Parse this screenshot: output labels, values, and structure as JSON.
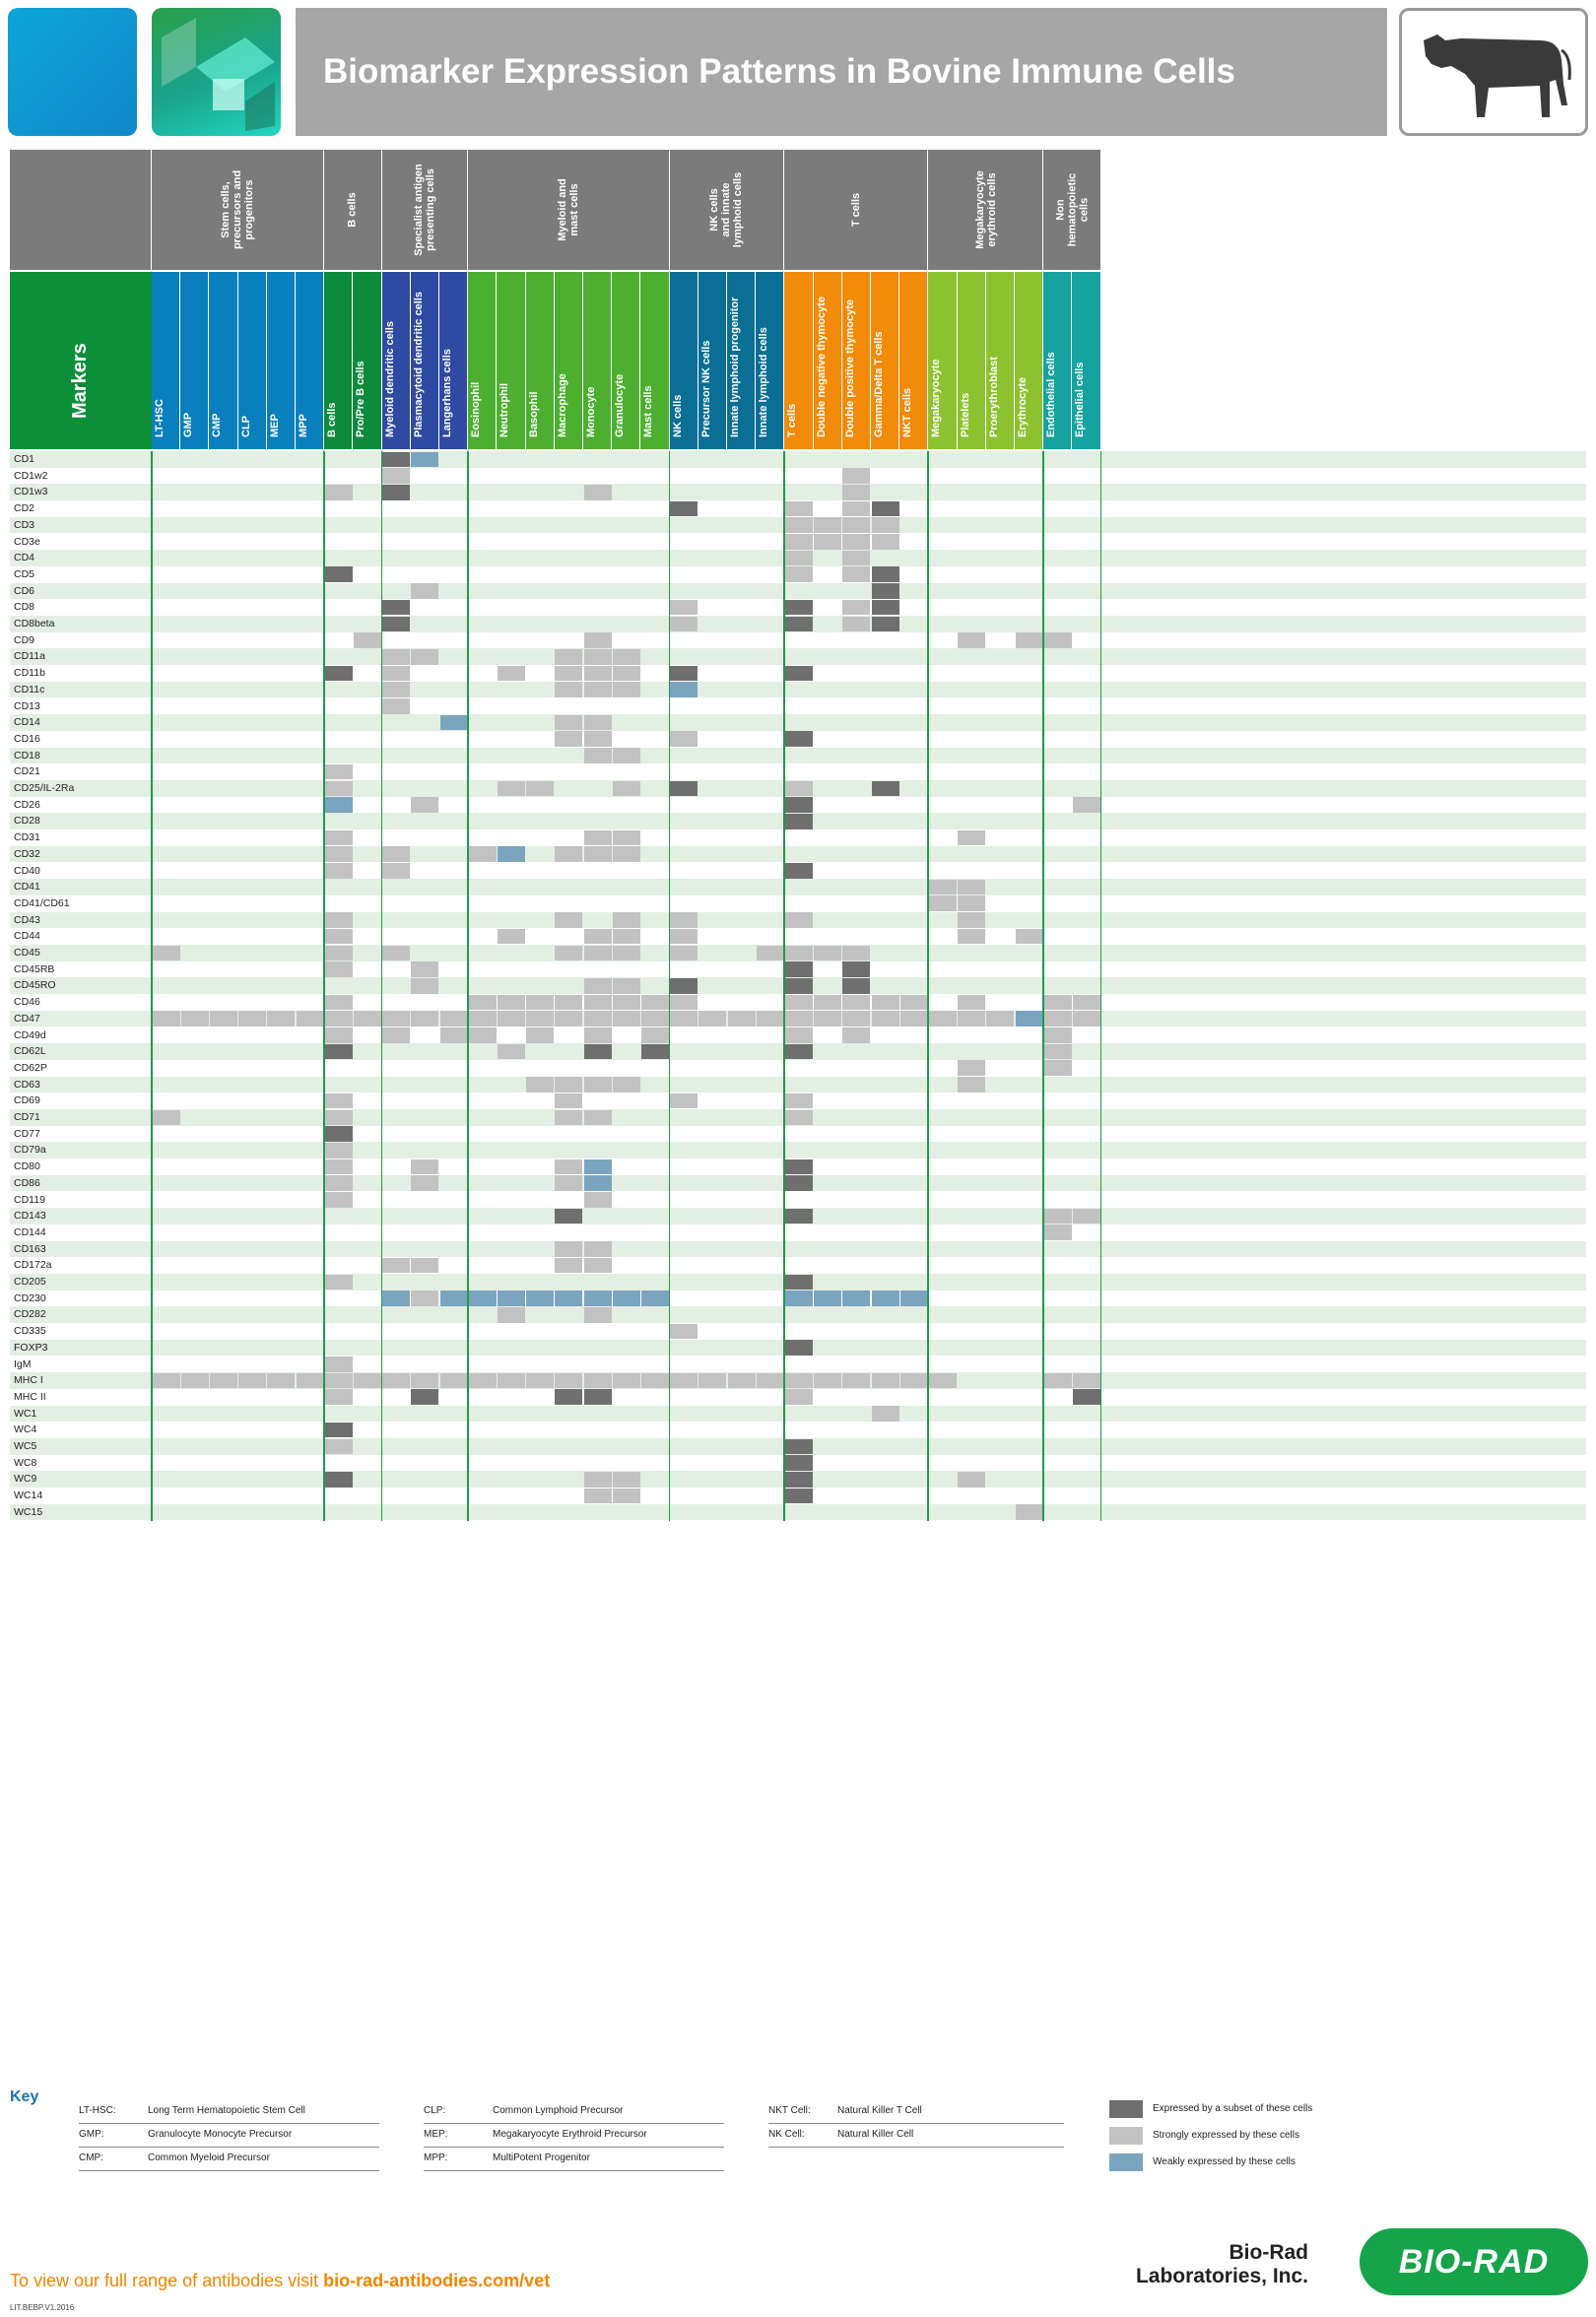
{
  "title": "Biomarker Expression Patterns in Bovine Immune Cells",
  "markers_label": "Markers",
  "groups": [
    {
      "label": "Stem cells,\nprecursors and\nprogenitors",
      "start": 0,
      "span": 6
    },
    {
      "label": "B cells",
      "start": 6,
      "span": 2
    },
    {
      "label": "Specialist antigen\npresenting cells",
      "start": 8,
      "span": 3
    },
    {
      "label": "Myeloid and\nmast cells",
      "start": 11,
      "span": 7
    },
    {
      "label": "NK cells\nand innate\nlymphoid cells",
      "start": 18,
      "span": 4
    },
    {
      "label": "T cells",
      "start": 22,
      "span": 5
    },
    {
      "label": "Megakaryocyte\nerythroid cells",
      "start": 27,
      "span": 4
    },
    {
      "label": "Non\nhematopoietic\ncells",
      "start": 31,
      "span": 2
    }
  ],
  "columns": [
    {
      "label": "LT-HSC",
      "color": "#0a7fbd"
    },
    {
      "label": "GMP",
      "color": "#0a7fbd"
    },
    {
      "label": "CMP",
      "color": "#0a7fbd"
    },
    {
      "label": "CLP",
      "color": "#0a7fbd"
    },
    {
      "label": "MEP",
      "color": "#0a7fbd"
    },
    {
      "label": "MPP",
      "color": "#0a7fbd"
    },
    {
      "label": "B cells",
      "color": "#0e8a3c"
    },
    {
      "label": "Pro/Pre B cells",
      "color": "#0e8a3c"
    },
    {
      "label": "Myeloid dendritic cells",
      "color": "#2e4aa2"
    },
    {
      "label": "Plasmacytoid dendritic cells",
      "color": "#2e4aa2"
    },
    {
      "label": "Langerhans cells",
      "color": "#2e4aa2"
    },
    {
      "label": "Eosinophil",
      "color": "#4caf30"
    },
    {
      "label": "Neutrophil",
      "color": "#4caf30"
    },
    {
      "label": "Basophil",
      "color": "#4caf30"
    },
    {
      "label": "Macrophage",
      "color": "#4caf30"
    },
    {
      "label": "Monocyte",
      "color": "#4caf30"
    },
    {
      "label": "Granulocyte",
      "color": "#4caf30"
    },
    {
      "label": "Mast cells",
      "color": "#4caf30"
    },
    {
      "label": "NK cells",
      "color": "#0b6e94"
    },
    {
      "label": "Precursor NK cells",
      "color": "#0b6e94"
    },
    {
      "label": "Innate lymphoid progenitor",
      "color": "#0b6e94"
    },
    {
      "label": "Innate lymphoid cells",
      "color": "#0b6e94"
    },
    {
      "label": "T cells",
      "color": "#f28a0a"
    },
    {
      "label": "Double negative thymocyte",
      "color": "#f28a0a"
    },
    {
      "label": "Double positive thymocyte",
      "color": "#f28a0a"
    },
    {
      "label": "Gamma/Delta T cells",
      "color": "#f28a0a"
    },
    {
      "label": "NKT cells",
      "color": "#f28a0a"
    },
    {
      "label": "Megakaryocyte",
      "color": "#8cc230"
    },
    {
      "label": "Platelets",
      "color": "#8cc230"
    },
    {
      "label": "Proerythroblast",
      "color": "#8cc230"
    },
    {
      "label": "Erythrocyte",
      "color": "#8cc230"
    },
    {
      "label": "Endothelial cells",
      "color": "#16a29e"
    },
    {
      "label": "Epithelial cells",
      "color": "#16a29e"
    }
  ],
  "expression_colors": {
    "s": "#6f6f6f",
    "x": "#c2c2c2",
    "w": "#7ba4bf",
    "bg": "#e3efe3"
  },
  "rows": [
    {
      "marker": "CD1",
      "cells": {
        "8": "s",
        "9": "w"
      }
    },
    {
      "marker": "CD1w2",
      "cells": {
        "8": "x",
        "24": "x"
      }
    },
    {
      "marker": "CD1w3",
      "cells": {
        "6": "x",
        "8": "s",
        "15": "x",
        "24": "x"
      }
    },
    {
      "marker": "CD2",
      "cells": {
        "18": "s",
        "22": "x",
        "24": "x",
        "25": "s"
      }
    },
    {
      "marker": "CD3",
      "cells": {
        "22": "x",
        "23": "x",
        "24": "x",
        "25": "x"
      }
    },
    {
      "marker": "CD3e",
      "cells": {
        "22": "x",
        "23": "x",
        "24": "x",
        "25": "x"
      }
    },
    {
      "marker": "CD4",
      "cells": {
        "22": "x",
        "24": "x"
      }
    },
    {
      "marker": "CD5",
      "cells": {
        "6": "s",
        "22": "x",
        "24": "x",
        "25": "s"
      }
    },
    {
      "marker": "CD6",
      "cells": {
        "9": "x",
        "25": "s"
      }
    },
    {
      "marker": "CD8",
      "cells": {
        "8": "s",
        "18": "x",
        "22": "s",
        "24": "x",
        "25": "s"
      }
    },
    {
      "marker": "CD8beta",
      "cells": {
        "8": "s",
        "18": "x",
        "22": "s",
        "24": "x",
        "25": "s"
      }
    },
    {
      "marker": "CD9",
      "cells": {
        "7": "x",
        "15": "x",
        "28": "x",
        "30": "x",
        "31": "x"
      }
    },
    {
      "marker": "CD11a",
      "cells": {
        "8": "x",
        "9": "x",
        "14": "x",
        "15": "x",
        "16": "x"
      }
    },
    {
      "marker": "CD11b",
      "cells": {
        "6": "s",
        "8": "x",
        "12": "x",
        "14": "x",
        "15": "x",
        "16": "x",
        "18": "s",
        "22": "s"
      }
    },
    {
      "marker": "CD11c",
      "cells": {
        "8": "x",
        "14": "x",
        "15": "x",
        "16": "x",
        "18": "w"
      }
    },
    {
      "marker": "CD13",
      "cells": {
        "8": "x"
      }
    },
    {
      "marker": "CD14",
      "cells": {
        "10": "w",
        "14": "x",
        "15": "x"
      }
    },
    {
      "marker": "CD16",
      "cells": {
        "14": "x",
        "15": "x",
        "18": "x",
        "22": "s"
      }
    },
    {
      "marker": "CD18",
      "cells": {
        "15": "x",
        "16": "x"
      }
    },
    {
      "marker": "CD21",
      "cells": {
        "6": "x"
      }
    },
    {
      "marker": "CD25/IL-2Ra",
      "cells": {
        "6": "x",
        "12": "x",
        "13": "x",
        "16": "x",
        "18": "s",
        "22": "x",
        "25": "s"
      }
    },
    {
      "marker": "CD26",
      "cells": {
        "6": "w",
        "9": "x",
        "22": "s",
        "32": "x"
      }
    },
    {
      "marker": "CD28",
      "cells": {
        "22": "s"
      }
    },
    {
      "marker": "CD31",
      "cells": {
        "6": "x",
        "15": "x",
        "16": "x",
        "28": "x"
      }
    },
    {
      "marker": "CD32",
      "cells": {
        "6": "x",
        "8": "x",
        "11": "x",
        "12": "w",
        "14": "x",
        "15": "x",
        "16": "x"
      }
    },
    {
      "marker": "CD40",
      "cells": {
        "6": "x",
        "8": "x",
        "22": "s"
      }
    },
    {
      "marker": "CD41",
      "cells": {
        "27": "x",
        "28": "x"
      }
    },
    {
      "marker": "CD41/CD61",
      "cells": {
        "27": "x",
        "28": "x"
      }
    },
    {
      "marker": "CD43",
      "cells": {
        "6": "x",
        "14": "x",
        "16": "x",
        "18": "x",
        "22": "x",
        "28": "x"
      }
    },
    {
      "marker": "CD44",
      "cells": {
        "6": "x",
        "12": "x",
        "15": "x",
        "16": "x",
        "18": "x",
        "28": "x",
        "30": "x"
      }
    },
    {
      "marker": "CD45",
      "cells": {
        "0": "x",
        "6": "x",
        "8": "x",
        "14": "x",
        "15": "x",
        "16": "x",
        "18": "x",
        "21": "x",
        "22": "x",
        "23": "x",
        "24": "x"
      }
    },
    {
      "marker": "CD45RB",
      "cells": {
        "6": "x",
        "9": "x",
        "22": "s",
        "24": "s"
      }
    },
    {
      "marker": "CD45RO",
      "cells": {
        "9": "x",
        "15": "x",
        "16": "x",
        "18": "s",
        "22": "s",
        "24": "s"
      }
    },
    {
      "marker": "CD46",
      "cells": {
        "6": "x",
        "11": "x",
        "12": "x",
        "13": "x",
        "14": "x",
        "15": "x",
        "16": "x",
        "17": "x",
        "18": "x",
        "22": "x",
        "23": "x",
        "24": "x",
        "25": "x",
        "26": "x",
        "28": "x",
        "31": "x",
        "32": "x"
      }
    },
    {
      "marker": "CD47",
      "cells": {
        "0": "x",
        "1": "x",
        "2": "x",
        "3": "x",
        "4": "x",
        "5": "x",
        "6": "x",
        "7": "x",
        "8": "x",
        "9": "x",
        "10": "x",
        "11": "x",
        "12": "x",
        "13": "x",
        "14": "x",
        "15": "x",
        "16": "x",
        "17": "x",
        "18": "x",
        "19": "x",
        "20": "x",
        "21": "x",
        "22": "x",
        "23": "x",
        "24": "x",
        "25": "x",
        "26": "x",
        "27": "x",
        "28": "x",
        "29": "x",
        "30": "w",
        "31": "x",
        "32": "x"
      }
    },
    {
      "marker": "CD49d",
      "cells": {
        "6": "x",
        "8": "x",
        "10": "x",
        "11": "x",
        "13": "x",
        "15": "x",
        "17": "x",
        "22": "x",
        "24": "x",
        "31": "x"
      }
    },
    {
      "marker": "CD62L",
      "cells": {
        "6": "s",
        "12": "x",
        "15": "s",
        "17": "s",
        "22": "s",
        "31": "x"
      }
    },
    {
      "marker": "CD62P",
      "cells": {
        "28": "x",
        "31": "x"
      }
    },
    {
      "marker": "CD63",
      "cells": {
        "13": "x",
        "14": "x",
        "15": "x",
        "16": "x",
        "28": "x"
      }
    },
    {
      "marker": "CD69",
      "cells": {
        "6": "x",
        "14": "x",
        "18": "x",
        "22": "x"
      }
    },
    {
      "marker": "CD71",
      "cells": {
        "0": "x",
        "6": "x",
        "14": "x",
        "15": "x",
        "22": "x"
      }
    },
    {
      "marker": "CD77",
      "cells": {
        "6": "s"
      }
    },
    {
      "marker": "CD79a",
      "cells": {
        "6": "x"
      }
    },
    {
      "marker": "CD80",
      "cells": {
        "6": "x",
        "9": "x",
        "14": "x",
        "15": "w",
        "22": "s"
      }
    },
    {
      "marker": "CD86",
      "cells": {
        "6": "x",
        "9": "x",
        "14": "x",
        "15": "w",
        "22": "s"
      }
    },
    {
      "marker": "CD119",
      "cells": {
        "6": "x",
        "15": "x"
      }
    },
    {
      "marker": "CD143",
      "cells": {
        "14": "s",
        "22": "s",
        "31": "x",
        "32": "x"
      }
    },
    {
      "marker": "CD144",
      "cells": {
        "31": "x"
      }
    },
    {
      "marker": "CD163",
      "cells": {
        "14": "x",
        "15": "x"
      }
    },
    {
      "marker": "CD172a",
      "cells": {
        "8": "x",
        "9": "x",
        "14": "x",
        "15": "x"
      }
    },
    {
      "marker": "CD205",
      "cells": {
        "6": "x",
        "22": "s"
      }
    },
    {
      "marker": "CD230",
      "cells": {
        "8": "w",
        "9": "x",
        "10": "w",
        "11": "w",
        "12": "w",
        "13": "w",
        "14": "w",
        "15": "w",
        "16": "w",
        "17": "w",
        "22": "w",
        "23": "w",
        "24": "w",
        "25": "w",
        "26": "w"
      }
    },
    {
      "marker": "CD282",
      "cells": {
        "12": "x",
        "15": "x"
      }
    },
    {
      "marker": "CD335",
      "cells": {
        "18": "x"
      }
    },
    {
      "marker": "FOXP3",
      "cells": {
        "22": "s"
      }
    },
    {
      "marker": "IgM",
      "cells": {
        "6": "x"
      }
    },
    {
      "marker": "MHC I",
      "cells": {
        "0": "x",
        "1": "x",
        "2": "x",
        "3": "x",
        "4": "x",
        "5": "x",
        "6": "x",
        "7": "x",
        "8": "x",
        "9": "x",
        "10": "x",
        "11": "x",
        "12": "x",
        "13": "x",
        "14": "x",
        "15": "x",
        "16": "x",
        "17": "x",
        "18": "x",
        "19": "x",
        "20": "x",
        "21": "x",
        "22": "x",
        "23": "x",
        "24": "x",
        "25": "x",
        "26": "x",
        "27": "x",
        "31": "x",
        "32": "x"
      }
    },
    {
      "marker": "MHC II",
      "cells": {
        "6": "x",
        "9": "s",
        "14": "s",
        "15": "s",
        "22": "x",
        "32": "s"
      }
    },
    {
      "marker": "WC1",
      "cells": {
        "25": "x"
      }
    },
    {
      "marker": "WC4",
      "cells": {
        "6": "s"
      }
    },
    {
      "marker": "WC5",
      "cells": {
        "6": "x",
        "22": "s"
      }
    },
    {
      "marker": "WC8",
      "cells": {
        "22": "s"
      }
    },
    {
      "marker": "WC9",
      "cells": {
        "6": "s",
        "15": "x",
        "16": "x",
        "22": "s",
        "28": "x"
      }
    },
    {
      "marker": "WC14",
      "cells": {
        "15": "x",
        "16": "x",
        "22": "s"
      }
    },
    {
      "marker": "WC15",
      "cells": {
        "30": "x"
      }
    }
  ],
  "key": {
    "title": "Key",
    "items": [
      {
        "abbr": "LT-HSC:",
        "full": "Long Term Hematopoietic Stem Cell"
      },
      {
        "abbr": "GMP:",
        "full": "Granulocyte Monocyte Precursor"
      },
      {
        "abbr": "CMP:",
        "full": "Common Myeloid Precursor"
      },
      {
        "abbr": "CLP:",
        "full": "Common Lymphoid Precursor"
      },
      {
        "abbr": "MEP:",
        "full": "Megakaryocyte Erythroid Precursor"
      },
      {
        "abbr": "MPP:",
        "full": "MultiPotent Progenitor"
      },
      {
        "abbr": "NKT Cell:",
        "full": "Natural Killer T Cell"
      },
      {
        "abbr": "NK Cell:",
        "full": "Natural Killer Cell"
      }
    ],
    "legend": [
      {
        "label": "Expressed by a subset of these cells",
        "color": "#6f6f6f"
      },
      {
        "label": "Strongly expressed by these cells",
        "color": "#c2c2c2"
      },
      {
        "label": "Weakly expressed by these cells",
        "color": "#7ba4bf"
      }
    ]
  },
  "footer": {
    "cta_text": "To view our full range of antibodies visit ",
    "cta_link": "bio-rad-antibodies.com/vet",
    "code": "LIT.BEBP.V1.2016",
    "company_line1": "Bio-Rad",
    "company_line2": "Laboratories, Inc.",
    "brand": "BIO-RAD"
  }
}
